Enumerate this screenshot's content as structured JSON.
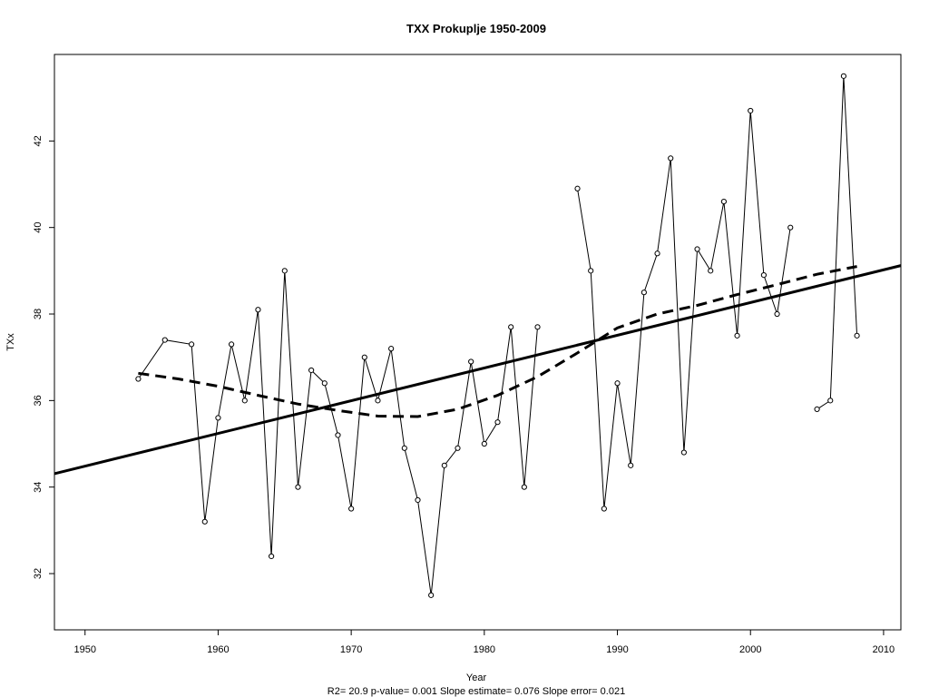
{
  "chart_data": {
    "type": "line",
    "title": "TXX   Prokuplje 1950-2009",
    "xlabel": "Year",
    "ylabel": "TXx",
    "caption": "R2= 20.9  p-value= 0.001  Slope estimate= 0.076  Slope error= 0.021",
    "xlim": [
      1947.7,
      2011.3
    ],
    "ylim": [
      30.7,
      44.0
    ],
    "xticks": [
      1950,
      1960,
      1970,
      1980,
      1990,
      2000,
      2010
    ],
    "yticks": [
      32,
      34,
      36,
      38,
      40,
      42
    ],
    "grid": false,
    "series": [
      {
        "style": "line-with-points",
        "x": [
          1954,
          1956,
          1958,
          1959,
          1960,
          1961,
          1962,
          1963,
          1964,
          1965,
          1966,
          1967,
          1968,
          1969,
          1970,
          1971,
          1972,
          1973,
          1974,
          1975,
          1976,
          1977,
          1978,
          1979,
          1980,
          1981,
          1982,
          1983,
          1984,
          1985,
          1986,
          1987,
          1988,
          1989,
          1990,
          1991,
          1992,
          1993,
          1994,
          1995,
          1996,
          1997,
          1998,
          1999,
          2000,
          2001,
          2002,
          2003,
          2004,
          2005,
          2006,
          2007,
          2008
        ],
        "y": [
          36.5,
          37.4,
          37.3,
          33.2,
          35.6,
          37.3,
          36.0,
          38.1,
          32.4,
          39.0,
          34.0,
          36.7,
          36.4,
          35.2,
          33.5,
          37.0,
          36.0,
          37.2,
          34.9,
          33.7,
          31.5,
          34.5,
          34.9,
          36.9,
          35.0,
          35.5,
          37.7,
          34.0,
          37.7,
          null,
          null,
          40.9,
          39.0,
          33.5,
          36.4,
          34.5,
          38.5,
          39.4,
          41.6,
          34.8,
          39.5,
          39.0,
          40.6,
          37.5,
          42.7,
          38.9,
          38.0,
          40.0,
          null,
          35.8,
          36.0,
          43.5,
          37.5
        ]
      },
      {
        "style": "linear-trend",
        "x": [
          1947.7,
          2011.3
        ],
        "y": [
          34.31,
          39.12
        ]
      },
      {
        "style": "smoothed-dashed",
        "x": [
          1954,
          1957,
          1960,
          1963,
          1966,
          1969,
          1972,
          1975,
          1978,
          1981,
          1984,
          1987,
          1990,
          1993,
          1996,
          1999,
          2002,
          2005,
          2008
        ],
        "y": [
          36.63,
          36.5,
          36.33,
          36.12,
          35.92,
          35.77,
          35.64,
          35.63,
          35.8,
          36.12,
          36.55,
          37.1,
          37.68,
          38.0,
          38.2,
          38.45,
          38.68,
          38.92,
          39.1
        ]
      }
    ]
  }
}
